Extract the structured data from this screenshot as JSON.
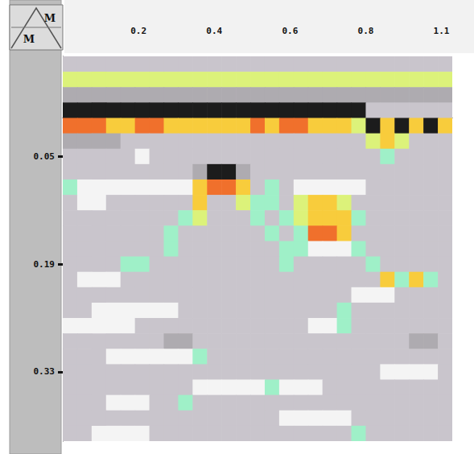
{
  "chart_data": {
    "type": "heatmap",
    "annotations": [
      "M",
      "M"
    ],
    "xlim": [
      0,
      1.08
    ],
    "ylim": [
      -0.08,
      0.42
    ],
    "xticks": [
      {
        "value": 0.21,
        "label": "0.2"
      },
      {
        "value": 0.42,
        "label": "0.4"
      },
      {
        "value": 0.63,
        "label": "0.6"
      },
      {
        "value": 0.84,
        "label": "0.8"
      },
      {
        "value": 1.05,
        "label": "1.1"
      }
    ],
    "yticks": [
      0.05,
      0.19,
      0.33
    ],
    "grid": false,
    "x": [
      0.02,
      0.06,
      0.1,
      0.14,
      0.18,
      0.22,
      0.26,
      0.3,
      0.34,
      0.38,
      0.42,
      0.46,
      0.5,
      0.54,
      0.58,
      0.62,
      0.66,
      0.7,
      0.74,
      0.78,
      0.82,
      0.86,
      0.9,
      0.94,
      0.98,
      1.02,
      1.06
    ],
    "y": [
      -0.07,
      -0.05,
      -0.03,
      -0.01,
      0.01,
      0.03,
      0.05,
      0.07,
      0.09,
      0.11,
      0.13,
      0.15,
      0.17,
      0.19,
      0.21,
      0.23,
      0.25,
      0.27,
      0.29,
      0.31,
      0.33,
      0.35,
      0.37,
      0.39,
      0.41
    ],
    "cells": [
      [
        3,
        3,
        3,
        3,
        3,
        3,
        3,
        3,
        3,
        3,
        3,
        3,
        3,
        3,
        3,
        3,
        3,
        3,
        3,
        3,
        3,
        3,
        3,
        3,
        3,
        3,
        3
      ],
      [
        6,
        6,
        6,
        6,
        6,
        6,
        6,
        6,
        6,
        6,
        6,
        6,
        6,
        6,
        6,
        6,
        6,
        6,
        6,
        6,
        6,
        6,
        6,
        6,
        6,
        6,
        6
      ],
      [
        2,
        2,
        2,
        2,
        2,
        2,
        2,
        2,
        2,
        2,
        2,
        2,
        2,
        2,
        2,
        2,
        2,
        2,
        2,
        2,
        2,
        2,
        2,
        2,
        2,
        2,
        2
      ],
      [
        0,
        0,
        0,
        0,
        0,
        0,
        0,
        0,
        0,
        0,
        0,
        0,
        0,
        0,
        0,
        0,
        0,
        0,
        0,
        0,
        0,
        3,
        3,
        3,
        3,
        3,
        3
      ],
      [
        8,
        8,
        8,
        7,
        7,
        8,
        8,
        7,
        7,
        7,
        7,
        7,
        7,
        8,
        7,
        8,
        8,
        7,
        7,
        7,
        6,
        0,
        7,
        0,
        7,
        0,
        7
      ],
      [
        2,
        2,
        2,
        2,
        3,
        3,
        3,
        3,
        3,
        3,
        3,
        3,
        3,
        3,
        3,
        3,
        3,
        3,
        3,
        3,
        3,
        6,
        7,
        6,
        3,
        3,
        3
      ],
      [
        3,
        3,
        3,
        3,
        3,
        4,
        3,
        3,
        3,
        3,
        3,
        3,
        3,
        3,
        3,
        3,
        3,
        3,
        3,
        3,
        3,
        3,
        5,
        3,
        3,
        3,
        3
      ],
      [
        3,
        3,
        3,
        3,
        3,
        3,
        3,
        3,
        3,
        2,
        0,
        0,
        2,
        3,
        3,
        3,
        3,
        3,
        3,
        3,
        3,
        3,
        3,
        3,
        3,
        3,
        3
      ],
      [
        5,
        4,
        4,
        4,
        4,
        4,
        4,
        4,
        4,
        7,
        8,
        8,
        7,
        3,
        5,
        3,
        4,
        4,
        4,
        4,
        4,
        3,
        3,
        3,
        3,
        3,
        3
      ],
      [
        3,
        4,
        4,
        3,
        3,
        3,
        3,
        3,
        3,
        7,
        3,
        3,
        6,
        5,
        5,
        3,
        6,
        7,
        7,
        6,
        3,
        3,
        3,
        3,
        3,
        3,
        3
      ],
      [
        3,
        3,
        3,
        3,
        3,
        3,
        3,
        3,
        5,
        6,
        3,
        3,
        3,
        5,
        3,
        5,
        6,
        7,
        7,
        7,
        5,
        3,
        3,
        3,
        3,
        3,
        3
      ],
      [
        3,
        3,
        3,
        3,
        3,
        3,
        3,
        5,
        3,
        3,
        3,
        3,
        3,
        3,
        5,
        3,
        5,
        8,
        8,
        7,
        3,
        3,
        3,
        3,
        3,
        3,
        3
      ],
      [
        3,
        3,
        3,
        3,
        3,
        3,
        3,
        5,
        3,
        3,
        3,
        3,
        3,
        3,
        3,
        5,
        5,
        4,
        4,
        4,
        5,
        3,
        3,
        3,
        3,
        3,
        3
      ],
      [
        3,
        3,
        3,
        3,
        5,
        5,
        3,
        3,
        3,
        3,
        3,
        3,
        3,
        3,
        3,
        5,
        3,
        3,
        3,
        3,
        3,
        5,
        3,
        3,
        3,
        3,
        3
      ],
      [
        3,
        4,
        4,
        4,
        3,
        3,
        3,
        3,
        3,
        3,
        3,
        3,
        3,
        3,
        3,
        3,
        3,
        3,
        3,
        3,
        3,
        3,
        7,
        5,
        7,
        5,
        3
      ],
      [
        3,
        3,
        3,
        3,
        3,
        3,
        3,
        3,
        3,
        3,
        3,
        3,
        3,
        3,
        3,
        3,
        3,
        3,
        3,
        3,
        4,
        4,
        4,
        3,
        3,
        3,
        3
      ],
      [
        3,
        3,
        4,
        4,
        4,
        4,
        4,
        4,
        3,
        3,
        3,
        3,
        3,
        3,
        3,
        3,
        3,
        3,
        3,
        5,
        3,
        3,
        3,
        3,
        3,
        3,
        3
      ],
      [
        4,
        4,
        4,
        4,
        4,
        3,
        3,
        3,
        3,
        3,
        3,
        3,
        3,
        3,
        3,
        3,
        3,
        4,
        4,
        5,
        3,
        3,
        3,
        3,
        3,
        3,
        3
      ],
      [
        3,
        3,
        3,
        3,
        3,
        3,
        3,
        2,
        2,
        3,
        3,
        3,
        3,
        3,
        3,
        3,
        3,
        3,
        3,
        3,
        3,
        3,
        3,
        3,
        2,
        2,
        3
      ],
      [
        3,
        3,
        3,
        4,
        4,
        4,
        4,
        4,
        4,
        5,
        3,
        3,
        3,
        3,
        3,
        3,
        3,
        3,
        3,
        3,
        3,
        3,
        3,
        3,
        3,
        3,
        3
      ],
      [
        3,
        3,
        3,
        3,
        3,
        3,
        3,
        3,
        3,
        3,
        3,
        3,
        3,
        3,
        3,
        3,
        3,
        3,
        3,
        3,
        3,
        3,
        4,
        4,
        4,
        4,
        3
      ],
      [
        3,
        3,
        3,
        3,
        3,
        3,
        3,
        3,
        3,
        4,
        4,
        4,
        4,
        4,
        5,
        4,
        4,
        4,
        3,
        3,
        3,
        3,
        3,
        3,
        3,
        3,
        3
      ],
      [
        3,
        3,
        3,
        4,
        4,
        4,
        3,
        3,
        5,
        3,
        3,
        3,
        3,
        3,
        3,
        3,
        3,
        3,
        3,
        3,
        3,
        3,
        3,
        3,
        3,
        3,
        3
      ],
      [
        3,
        3,
        3,
        3,
        3,
        3,
        3,
        3,
        3,
        3,
        3,
        3,
        3,
        3,
        3,
        4,
        4,
        4,
        4,
        4,
        3,
        3,
        3,
        3,
        3,
        3,
        3
      ],
      [
        3,
        3,
        4,
        4,
        4,
        4,
        3,
        3,
        3,
        3,
        3,
        3,
        3,
        3,
        3,
        3,
        3,
        3,
        3,
        3,
        5,
        3,
        3,
        3,
        3,
        3,
        3
      ]
    ]
  }
}
